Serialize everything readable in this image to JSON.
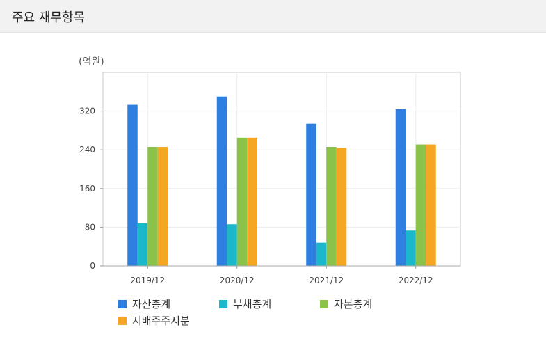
{
  "header": {
    "title": "주요 재무항목"
  },
  "chart_data": {
    "type": "bar",
    "unit_label": "(억원)",
    "categories": [
      "2019/12",
      "2020/12",
      "2021/12",
      "2022/12"
    ],
    "yticks": [
      "0",
      "80",
      "160",
      "240",
      "320"
    ],
    "ylim": [
      0,
      400
    ],
    "grid": true,
    "legend_position": "bottom",
    "series": [
      {
        "name": "자산총계",
        "color": "#2f7fe0",
        "values": [
          333,
          350,
          294,
          324
        ]
      },
      {
        "name": "부채총계",
        "color": "#1bb8cc",
        "values": [
          88,
          86,
          48,
          73
        ]
      },
      {
        "name": "자본총계",
        "color": "#8bc34a",
        "values": [
          246,
          265,
          246,
          251
        ]
      },
      {
        "name": "지배주주지분",
        "color": "#f5a623",
        "values": [
          246,
          265,
          244,
          251
        ]
      }
    ]
  }
}
